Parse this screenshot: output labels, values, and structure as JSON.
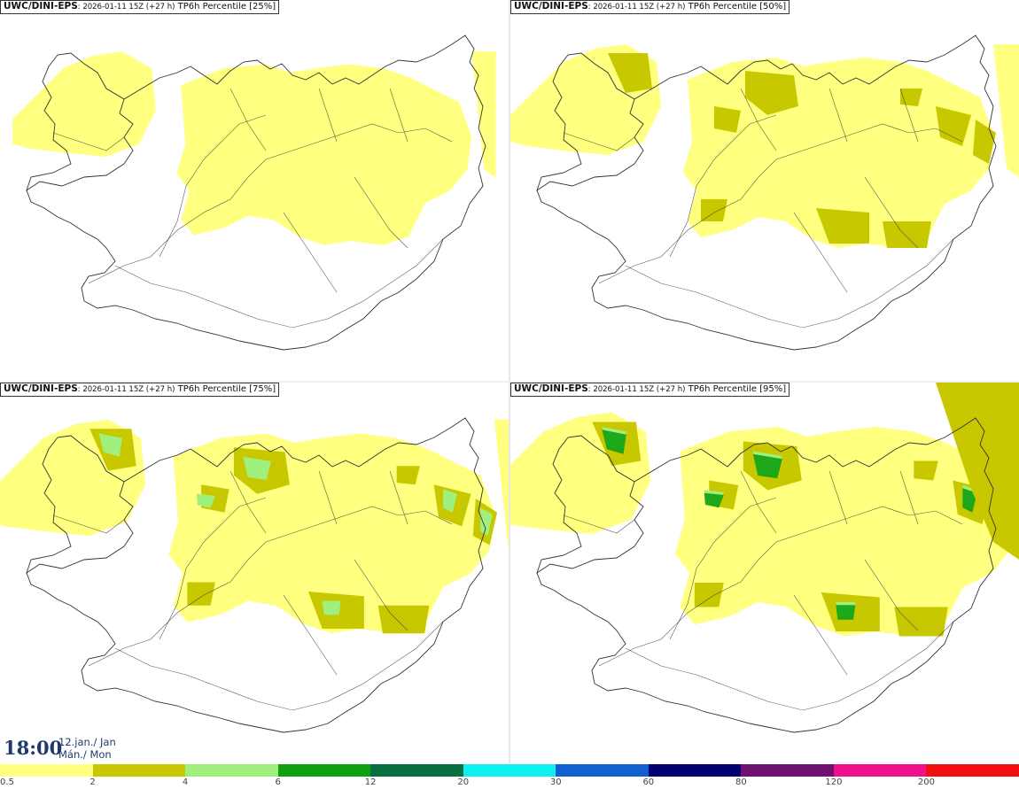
{
  "panels": [
    {
      "model": "UWC/DINI-EPS",
      "info": ": 2026-01-11 15Z (+27 h)",
      "product": "TP6h Percentile [25%]",
      "level": 1
    },
    {
      "model": "UWC/DINI-EPS",
      "info": ": 2026-01-11 15Z (+27 h)",
      "product": "TP6h Percentile [50%]",
      "level": 2
    },
    {
      "model": "UWC/DINI-EPS",
      "info": ": 2026-01-11 15Z (+27 h)",
      "product": "TP6h Percentile [75%]",
      "level": 3
    },
    {
      "model": "UWC/DINI-EPS",
      "info": ": 2026-01-11 15Z (+27 h)",
      "product": "TP6h Percentile [95%]",
      "level": 4
    }
  ],
  "clock": {
    "time": "18:00",
    "date_line1": "12.jan./ Jan",
    "date_line2": "Mán./ Mon"
  },
  "legend": {
    "labels": [
      "0.5",
      "2",
      "4",
      "6",
      "12",
      "20",
      "30",
      "60",
      "80",
      "120",
      "200"
    ],
    "colors": [
      "#ffff80",
      "#c8c800",
      "#a0f080",
      "#10a010",
      "#087040",
      "#10f0f0",
      "#1060d0",
      "#000070",
      "#701070",
      "#f0108c",
      "#f01010"
    ]
  },
  "colors": {
    "coastline": "#333333",
    "background": "#ffffff"
  }
}
